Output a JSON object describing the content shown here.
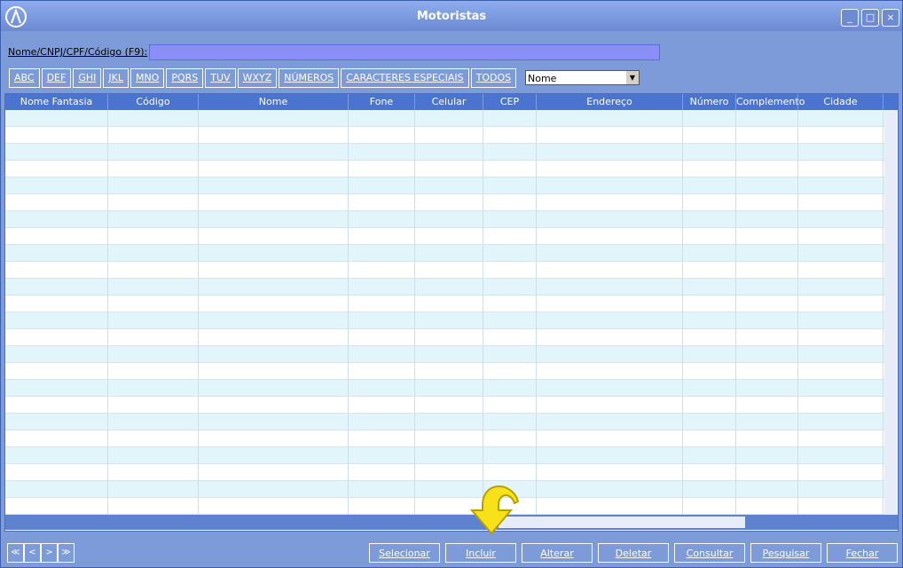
{
  "window": {
    "title": "Motoristas"
  },
  "search": {
    "label": "Nome/CNPJ/CPF/Código (F9):",
    "sort_field": "Nome"
  },
  "filters": [
    "ABC",
    "DEF",
    "GHI",
    "JKL",
    "MNO",
    "PQRS",
    "TUV",
    "WXYZ",
    "NÚMEROS",
    "CARACTERES ESPECIAIS",
    "TODOS"
  ],
  "table": {
    "columns": [
      "Nome Fantasia",
      "Código",
      "Nome",
      "Fone",
      "Celular",
      "CEP",
      "Endereço",
      "Número",
      "Complemento",
      "Cidade"
    ]
  },
  "buttons": [
    "Selecionar",
    "Incluir",
    "Alterar",
    "Deletar",
    "Consultar",
    "Pesquisar",
    "Fechar"
  ]
}
